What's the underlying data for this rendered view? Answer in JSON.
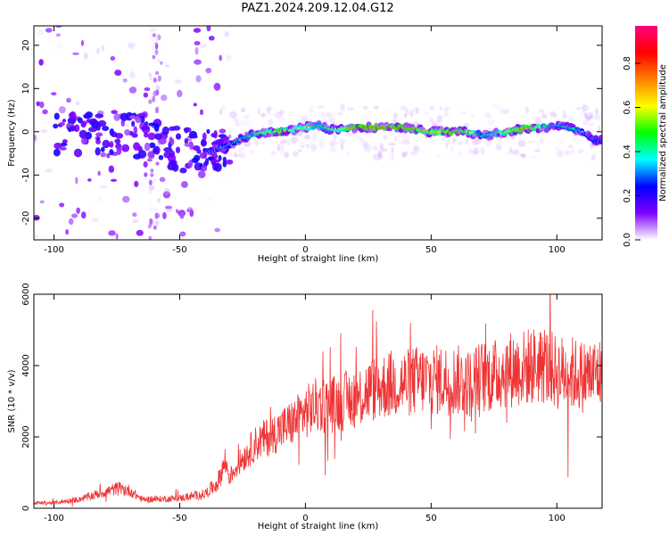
{
  "title": "PAZ1.2024.209.12.04.G12",
  "chart_data": [
    {
      "type": "heatmap",
      "title": "PAZ1.2024.209.12.04.G12",
      "xlabel": "Height of straight line (km)",
      "ylabel": "Frequency (Hz)",
      "xlim": [
        -108,
        118
      ],
      "ylim": [
        -25,
        24.5
      ],
      "xticks": [
        -100,
        -50,
        0,
        50,
        100
      ],
      "yticks": [
        -20,
        -10,
        0,
        10,
        20
      ],
      "colorbar": {
        "label": "Normalized spectral amplitude",
        "range": [
          0,
          0.97
        ],
        "ticks": [
          0.0,
          0.2,
          0.4,
          0.6,
          0.8
        ],
        "tick_labels": [
          "0.0",
          "0.2",
          "0.4",
          "0.6",
          "0.8"
        ],
        "colors": [
          "#ffffff",
          "#7f00ff",
          "#0000ff",
          "#00ffff",
          "#00ff00",
          "#ffff00",
          "#ff7f00",
          "#ff0000",
          "#ff0080"
        ]
      },
      "ridge": {
        "x": [
          -40,
          -35,
          -30,
          -25,
          -20,
          -15,
          -10,
          -5,
          0,
          5,
          10,
          20,
          30,
          40,
          50,
          55,
          60,
          65,
          70,
          75,
          80,
          85,
          90,
          95,
          100,
          105,
          110,
          115
        ],
        "freq": [
          -4.5,
          -4,
          -3,
          -1.5,
          -0.5,
          0,
          0,
          0.5,
          1,
          1.5,
          0.5,
          1,
          1,
          1,
          0,
          0,
          0,
          0,
          -1,
          -0.5,
          0,
          0.5,
          1,
          1,
          1.5,
          1,
          0,
          -2
        ],
        "amplitude": [
          0.3,
          0.35,
          0.4,
          0.45,
          0.55,
          0.6,
          0.75,
          0.6,
          0.65,
          0.5,
          0.55,
          0.8,
          0.85,
          0.8,
          0.7,
          0.75,
          0.8,
          0.7,
          0.45,
          0.5,
          0.7,
          0.75,
          0.8,
          0.55,
          0.45,
          0.5,
          0.4,
          0.3
        ]
      }
    },
    {
      "type": "line",
      "xlabel": "Height of straight line (km)",
      "ylabel": "SNR (10 * v/v)",
      "xlim": [
        -108,
        118
      ],
      "ylim": [
        0,
        6000
      ],
      "xticks": [
        -100,
        -50,
        0,
        50,
        100
      ],
      "yticks": [
        0,
        2000,
        4000,
        6000
      ],
      "color": "#ee3333",
      "x": [
        -108,
        -100,
        -90,
        -80,
        -75,
        -70,
        -65,
        -60,
        -50,
        -40,
        -35,
        -32,
        -30,
        -25,
        -20,
        -15,
        -10,
        -5,
        0,
        5,
        10,
        15,
        20,
        25,
        30,
        35,
        40,
        45,
        50,
        55,
        60,
        65,
        70,
        75,
        80,
        85,
        90,
        95,
        100,
        105,
        110,
        118
      ],
      "y": [
        150,
        150,
        250,
        450,
        550,
        500,
        250,
        250,
        280,
        400,
        700,
        1300,
        900,
        1400,
        1800,
        2000,
        2200,
        2400,
        2700,
        2900,
        2900,
        3000,
        3100,
        3300,
        3400,
        3500,
        3500,
        3600,
        3600,
        3600,
        3600,
        3500,
        3700,
        3700,
        3900,
        3900,
        4000,
        4000,
        3800,
        3800,
        3700,
        3800
      ]
    }
  ]
}
